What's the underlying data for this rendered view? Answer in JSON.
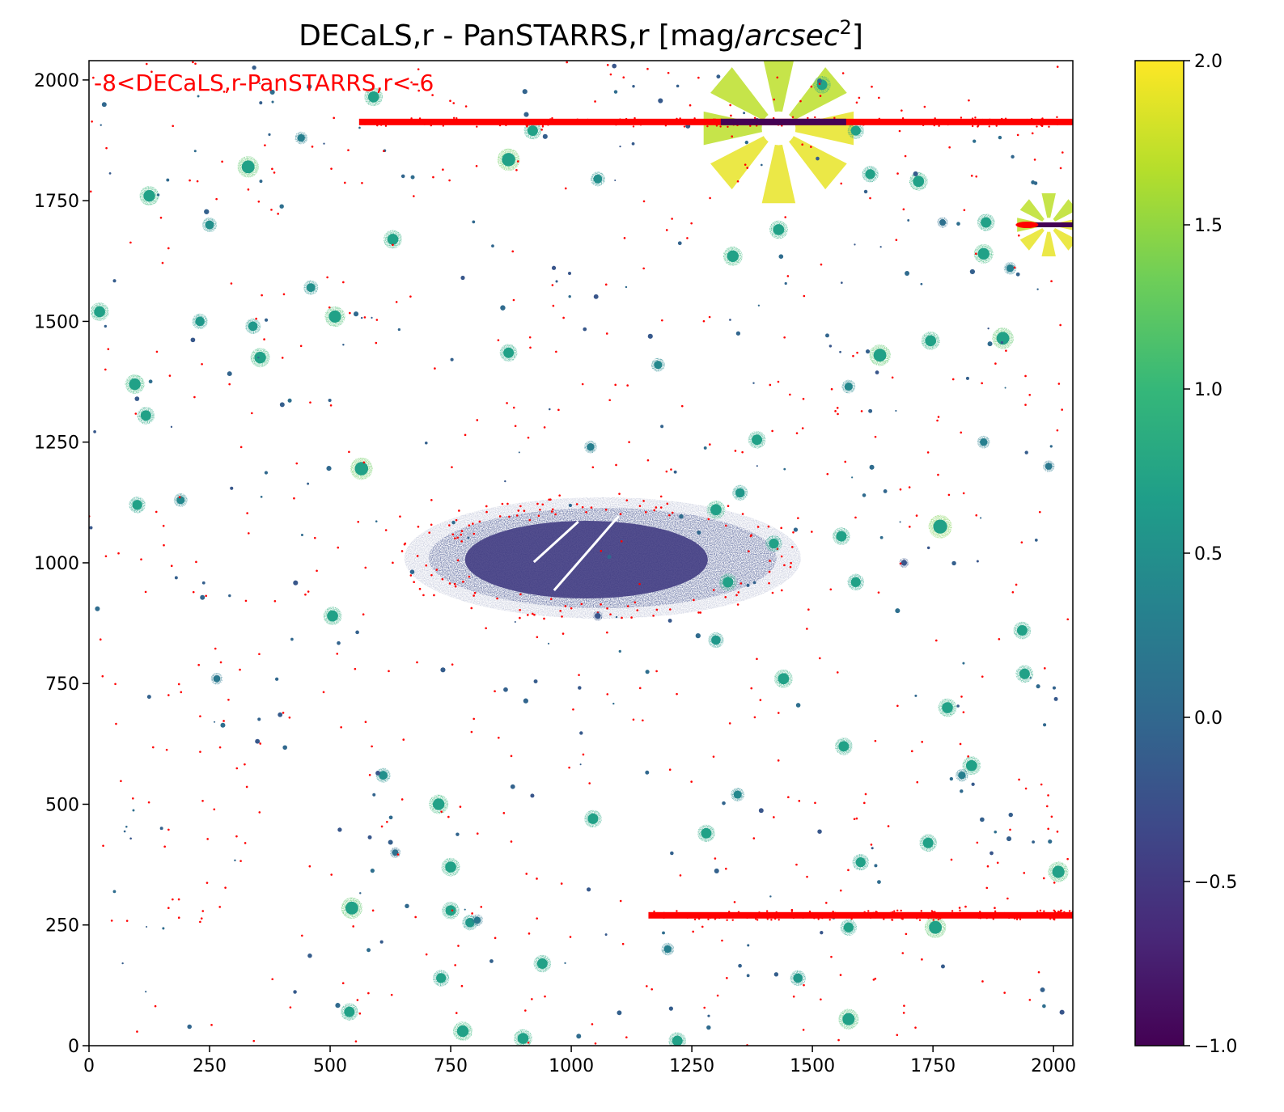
{
  "chart_data": {
    "type": "heatmap",
    "title": "DECaLS,r - PanSTARRS,r [mag/arcsec²]",
    "title_parts": {
      "main": "DECaLS,r - PanSTARRS,r [mag/",
      "italic": "arcsec",
      "sup": "2",
      "close": "]"
    },
    "xlim": [
      0,
      2040
    ],
    "ylim": [
      0,
      2040
    ],
    "xticks": [
      0,
      250,
      500,
      750,
      1000,
      1250,
      1500,
      1750,
      2000
    ],
    "yticks": [
      0,
      250,
      500,
      750,
      1000,
      1250,
      1500,
      1750,
      2000
    ],
    "colorbar": {
      "range": [
        -1.0,
        2.0
      ],
      "ticks": [
        -1.0,
        -0.5,
        0.0,
        0.5,
        1.0,
        1.5,
        2.0
      ],
      "tick_labels": [
        "−1.0",
        "−0.5",
        "0.0",
        "0.5",
        "1.0",
        "1.5",
        "2.0"
      ],
      "colormap": "viridis",
      "stops": [
        "#440154",
        "#482878",
        "#3e4989",
        "#31688e",
        "#26828e",
        "#1f9e89",
        "#35b779",
        "#6ece58",
        "#b5de2b",
        "#fde725"
      ]
    },
    "annotation": {
      "text": "-8<DECaLS,r-PanSTARRS,r<-6",
      "color": "#ff0000"
    },
    "background_value_color": "#3a538b",
    "masked_lines": [
      {
        "x": [
          560,
          2040
        ],
        "y": 1913
      },
      {
        "x": [
          1160,
          2040
        ],
        "y": 270
      }
    ],
    "galaxy": {
      "x": 1065,
      "y": 1010,
      "value": -0.3
    },
    "bright_stars": [
      {
        "x": 1430,
        "y": 1900
      },
      {
        "x": 1990,
        "y": 1700
      }
    ],
    "sources": [
      {
        "x": 330,
        "y": 1820,
        "v": 1.2
      },
      {
        "x": 125,
        "y": 1760,
        "v": 1.0
      },
      {
        "x": 870,
        "y": 1835,
        "v": 1.3
      },
      {
        "x": 920,
        "y": 1895,
        "v": 0.8
      },
      {
        "x": 590,
        "y": 1965,
        "v": 0.9
      },
      {
        "x": 1335,
        "y": 1635,
        "v": 1.0
      },
      {
        "x": 1855,
        "y": 1640,
        "v": 1.0
      },
      {
        "x": 1860,
        "y": 1705,
        "v": 0.8
      },
      {
        "x": 1720,
        "y": 1790,
        "v": 0.9
      },
      {
        "x": 510,
        "y": 1510,
        "v": 1.1
      },
      {
        "x": 22,
        "y": 1520,
        "v": 0.9
      },
      {
        "x": 355,
        "y": 1425,
        "v": 1.0
      },
      {
        "x": 95,
        "y": 1370,
        "v": 1.0
      },
      {
        "x": 118,
        "y": 1305,
        "v": 0.8
      },
      {
        "x": 565,
        "y": 1195,
        "v": 1.3
      },
      {
        "x": 1640,
        "y": 1430,
        "v": 1.2
      },
      {
        "x": 1575,
        "y": 1365,
        "v": 0.4
      },
      {
        "x": 1745,
        "y": 1460,
        "v": 0.9
      },
      {
        "x": 1895,
        "y": 1465,
        "v": 1.2
      },
      {
        "x": 1385,
        "y": 1255,
        "v": 0.8
      },
      {
        "x": 1300,
        "y": 1110,
        "v": 0.9
      },
      {
        "x": 1560,
        "y": 1055,
        "v": 0.8
      },
      {
        "x": 1765,
        "y": 1075,
        "v": 1.4
      },
      {
        "x": 1690,
        "y": 1000,
        "v": -0.2
      },
      {
        "x": 1590,
        "y": 960,
        "v": 0.7
      },
      {
        "x": 1420,
        "y": 1040,
        "v": 0.7
      },
      {
        "x": 1325,
        "y": 960,
        "v": 0.8
      },
      {
        "x": 505,
        "y": 890,
        "v": 0.9
      },
      {
        "x": 265,
        "y": 760,
        "v": 0.2
      },
      {
        "x": 1440,
        "y": 760,
        "v": 0.9
      },
      {
        "x": 1780,
        "y": 700,
        "v": 0.9
      },
      {
        "x": 1935,
        "y": 860,
        "v": 0.8
      },
      {
        "x": 1830,
        "y": 580,
        "v": 0.9
      },
      {
        "x": 545,
        "y": 285,
        "v": 1.2
      },
      {
        "x": 725,
        "y": 500,
        "v": 1.0
      },
      {
        "x": 1045,
        "y": 470,
        "v": 0.8
      },
      {
        "x": 940,
        "y": 170,
        "v": 0.8
      },
      {
        "x": 775,
        "y": 30,
        "v": 1.0
      },
      {
        "x": 1575,
        "y": 55,
        "v": 1.1
      },
      {
        "x": 2010,
        "y": 360,
        "v": 1.1
      },
      {
        "x": 1755,
        "y": 245,
        "v": 1.2
      },
      {
        "x": 1740,
        "y": 420,
        "v": 0.8
      },
      {
        "x": 635,
        "y": 400,
        "v": 0.1
      },
      {
        "x": 750,
        "y": 370,
        "v": 0.9
      },
      {
        "x": 750,
        "y": 280,
        "v": 0.8
      },
      {
        "x": 790,
        "y": 255,
        "v": 0.6
      },
      {
        "x": 805,
        "y": 260,
        "v": 0.2
      },
      {
        "x": 1565,
        "y": 620,
        "v": 0.8
      },
      {
        "x": 1345,
        "y": 520,
        "v": 0.4
      },
      {
        "x": 1220,
        "y": 10,
        "v": 0.8
      },
      {
        "x": 900,
        "y": 15,
        "v": 0.9
      },
      {
        "x": 540,
        "y": 70,
        "v": 0.8
      },
      {
        "x": 1040,
        "y": 1240,
        "v": 0.3
      },
      {
        "x": 1350,
        "y": 1145,
        "v": 0.6
      },
      {
        "x": 630,
        "y": 1670,
        "v": 0.9
      },
      {
        "x": 1055,
        "y": 1795,
        "v": 0.5
      },
      {
        "x": 1620,
        "y": 1805,
        "v": 0.7
      },
      {
        "x": 870,
        "y": 1435,
        "v": 0.8
      },
      {
        "x": 1770,
        "y": 1705,
        "v": 0.1
      },
      {
        "x": 250,
        "y": 1700,
        "v": 0.5
      },
      {
        "x": 230,
        "y": 1500,
        "v": 0.6
      },
      {
        "x": 340,
        "y": 1490,
        "v": 0.6
      },
      {
        "x": 100,
        "y": 1120,
        "v": 0.7
      },
      {
        "x": 1280,
        "y": 440,
        "v": 0.8
      },
      {
        "x": 1600,
        "y": 380,
        "v": 0.7
      },
      {
        "x": 1520,
        "y": 1990,
        "v": 0.8
      },
      {
        "x": 1055,
        "y": 890,
        "v": -0.2
      },
      {
        "x": 1575,
        "y": 245,
        "v": 0.7
      },
      {
        "x": 1300,
        "y": 840,
        "v": 0.6
      },
      {
        "x": 1590,
        "y": 1895,
        "v": 0.7
      },
      {
        "x": 1940,
        "y": 770,
        "v": 0.8
      },
      {
        "x": 1810,
        "y": 560,
        "v": 0.3
      },
      {
        "x": 440,
        "y": 1880,
        "v": 0.3
      },
      {
        "x": 1990,
        "y": 1200,
        "v": 0.2
      },
      {
        "x": 1855,
        "y": 1250,
        "v": 0.3
      },
      {
        "x": 1910,
        "y": 1610,
        "v": 0.3
      },
      {
        "x": 1180,
        "y": 1410,
        "v": 0.4
      },
      {
        "x": 1430,
        "y": 1690,
        "v": 0.9
      },
      {
        "x": 730,
        "y": 140,
        "v": 0.7
      },
      {
        "x": 1470,
        "y": 140,
        "v": 0.6
      },
      {
        "x": 610,
        "y": 560,
        "v": 0.5
      },
      {
        "x": 190,
        "y": 1130,
        "v": 0.4
      },
      {
        "x": 460,
        "y": 1570,
        "v": 0.5
      },
      {
        "x": 1200,
        "y": 200,
        "v": 0.3
      }
    ]
  }
}
